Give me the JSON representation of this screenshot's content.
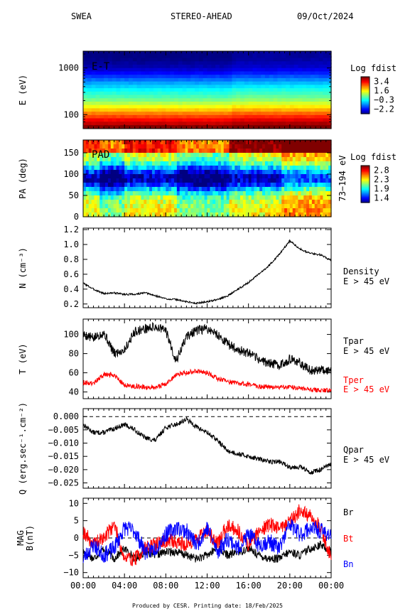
{
  "header": {
    "instrument": "SWEA",
    "spacecraft": "STEREO-AHEAD",
    "date": "09/Oct/2024"
  },
  "footer": "Produced by CESR.   Printing date: 18/Feb/2025",
  "colors": {
    "black": "#000000",
    "red": "#ff0000",
    "blue": "#0000ff"
  },
  "chart_data": [
    {
      "type": "heatmap",
      "id": "et",
      "panel_label": "E-T",
      "ylabel": "E (eV)",
      "yscale": "log",
      "yticks": [
        {
          "value": 1000,
          "label": "1000"
        },
        {
          "value": 100,
          "label": "100"
        }
      ],
      "ylim": [
        50,
        2300
      ],
      "colorbar": {
        "title": "Log fdist",
        "ticks": [
          "3.4",
          "1.6",
          "−0.3",
          "−2.2"
        ],
        "range": [
          -2.2,
          3.4
        ]
      },
      "energy_bands": [
        {
          "energy": 56,
          "value": 3.35
        },
        {
          "energy": 66,
          "value": 3.0
        },
        {
          "energy": 78,
          "value": 2.7
        },
        {
          "energy": 92,
          "value": 2.35
        },
        {
          "energy": 108,
          "value": 2.0
        },
        {
          "energy": 128,
          "value": 1.6
        },
        {
          "energy": 151,
          "value": 1.25
        },
        {
          "energy": 178,
          "value": 0.9
        },
        {
          "energy": 210,
          "value": 0.55
        },
        {
          "energy": 248,
          "value": 0.3
        },
        {
          "energy": 293,
          "value": 0.1
        },
        {
          "energy": 346,
          "value": -0.1
        },
        {
          "energy": 408,
          "value": -0.35
        },
        {
          "energy": 482,
          "value": -0.6
        },
        {
          "energy": 569,
          "value": -0.9
        },
        {
          "energy": 672,
          "value": -1.2
        },
        {
          "energy": 793,
          "value": -1.5
        },
        {
          "energy": 936,
          "value": -1.75
        },
        {
          "energy": 1105,
          "value": -1.95
        },
        {
          "energy": 1305,
          "value": -2.05
        },
        {
          "energy": 1541,
          "value": -2.15
        },
        {
          "energy": 1819,
          "value": -2.2
        }
      ]
    },
    {
      "type": "heatmap",
      "id": "pad",
      "panel_label": "PAD",
      "ylabel": "PA (deg)",
      "ylim": [
        0,
        180
      ],
      "yticks": [
        0,
        50,
        100,
        150
      ],
      "right_label": "73−194 eV",
      "colorbar": {
        "title": "Log fdist",
        "ticks": [
          "2.8",
          "2.3",
          "1.9",
          "1.4"
        ],
        "range": [
          1.4,
          2.8
        ]
      }
    },
    {
      "type": "line",
      "id": "density",
      "ylabel": "N (cm⁻³)",
      "ylim": [
        0.15,
        1.22
      ],
      "yticks": [
        "0.2",
        "0.4",
        "0.6",
        "0.8",
        "1.0",
        "1.2"
      ],
      "series": [
        {
          "name": "Density",
          "sub": "E > 45 eV",
          "color": "#000000",
          "points": [
            [
              0,
              0.48
            ],
            [
              1,
              0.4
            ],
            [
              2,
              0.34
            ],
            [
              3,
              0.35
            ],
            [
              4,
              0.33
            ],
            [
              5,
              0.33
            ],
            [
              6,
              0.35
            ],
            [
              7,
              0.31
            ],
            [
              8,
              0.27
            ],
            [
              9,
              0.26
            ],
            [
              10,
              0.23
            ],
            [
              11,
              0.21
            ],
            [
              12,
              0.23
            ],
            [
              13,
              0.26
            ],
            [
              14,
              0.31
            ],
            [
              15,
              0.4
            ],
            [
              16,
              0.49
            ],
            [
              17,
              0.6
            ],
            [
              18,
              0.72
            ],
            [
              19,
              0.87
            ],
            [
              20,
              1.05
            ],
            [
              21,
              0.94
            ],
            [
              22,
              0.88
            ],
            [
              23,
              0.86
            ],
            [
              24,
              0.79
            ]
          ]
        }
      ]
    },
    {
      "type": "line",
      "id": "temperature",
      "ylabel": "T (eV)",
      "ylim": [
        33,
        116
      ],
      "yticks": [
        "40",
        "60",
        "80",
        "100"
      ],
      "series": [
        {
          "name": "Tpar",
          "sub": "E > 45 eV",
          "color": "#000000",
          "points": [
            [
              0,
              100
            ],
            [
              1,
              96
            ],
            [
              2,
              102
            ],
            [
              3,
              80
            ],
            [
              4,
              84
            ],
            [
              5,
              103
            ],
            [
              6,
              106
            ],
            [
              7,
              108
            ],
            [
              8,
              104
            ],
            [
              9,
              72
            ],
            [
              10,
              98
            ],
            [
              11,
              104
            ],
            [
              12,
              106
            ],
            [
              13,
              100
            ],
            [
              14,
              90
            ],
            [
              15,
              84
            ],
            [
              16,
              80
            ],
            [
              17,
              74
            ],
            [
              18,
              70
            ],
            [
              19,
              68
            ],
            [
              20,
              74
            ],
            [
              21,
              70
            ],
            [
              22,
              62
            ],
            [
              23,
              64
            ],
            [
              24,
              62
            ]
          ]
        },
        {
          "name": "Tper",
          "sub": "E > 45 eV",
          "color": "#ff0000",
          "points": [
            [
              0,
              50
            ],
            [
              1,
              49
            ],
            [
              2,
              58
            ],
            [
              3,
              58
            ],
            [
              4,
              47
            ],
            [
              5,
              46
            ],
            [
              6,
              45
            ],
            [
              7,
              45
            ],
            [
              8,
              48
            ],
            [
              9,
              58
            ],
            [
              10,
              60
            ],
            [
              11,
              62
            ],
            [
              12,
              60
            ],
            [
              13,
              54
            ],
            [
              14,
              51
            ],
            [
              15,
              49
            ],
            [
              16,
              48
            ],
            [
              17,
              46
            ],
            [
              18,
              45
            ],
            [
              19,
              45
            ],
            [
              20,
              45
            ],
            [
              21,
              44
            ],
            [
              22,
              42
            ],
            [
              23,
              42
            ],
            [
              24,
              41
            ]
          ]
        }
      ]
    },
    {
      "type": "line",
      "id": "heatflux",
      "ylabel": "Q (erg.sec⁻¹.cm⁻²)",
      "ylim": [
        -0.027,
        0.003
      ],
      "yticks": [
        "0.000",
        "−0.005",
        "−0.010",
        "−0.015",
        "−0.020",
        "−0.025"
      ],
      "series": [
        {
          "name": "Qpar",
          "sub": "E > 45 eV",
          "color": "#000000",
          "points": [
            [
              0,
              -0.003
            ],
            [
              1,
              -0.006
            ],
            [
              2,
              -0.006
            ],
            [
              3,
              -0.0045
            ],
            [
              4,
              -0.003
            ],
            [
              5,
              -0.005
            ],
            [
              6,
              -0.008
            ],
            [
              7,
              -0.009
            ],
            [
              8,
              -0.004
            ],
            [
              9,
              -0.003
            ],
            [
              10,
              -0.001
            ],
            [
              11,
              -0.004
            ],
            [
              12,
              -0.006
            ],
            [
              13,
              -0.009
            ],
            [
              14,
              -0.013
            ],
            [
              15,
              -0.014
            ],
            [
              16,
              -0.015
            ],
            [
              17,
              -0.016
            ],
            [
              18,
              -0.017
            ],
            [
              19,
              -0.017
            ],
            [
              20,
              -0.019
            ],
            [
              21,
              -0.019
            ],
            [
              22,
              -0.021
            ],
            [
              23,
              -0.02
            ],
            [
              24,
              -0.018
            ]
          ]
        }
      ]
    },
    {
      "type": "line",
      "id": "mag",
      "ylabel": "MAG B(nT)",
      "ylim": [
        -11.5,
        11.5
      ],
      "yticks": [
        "10",
        "5",
        "0",
        "−5",
        "−10"
      ],
      "xticks": [
        "00:00",
        "04:00",
        "08:00",
        "12:00",
        "16:00",
        "20:00",
        "00:00"
      ],
      "series": [
        {
          "name": "Br",
          "color": "#000000",
          "points": [
            [
              0,
              -4
            ],
            [
              1,
              -6
            ],
            [
              2,
              -3
            ],
            [
              3,
              -6
            ],
            [
              4,
              -3
            ],
            [
              5,
              -6
            ],
            [
              6,
              -4
            ],
            [
              7,
              -5
            ],
            [
              8,
              -4
            ],
            [
              9,
              -4
            ],
            [
              10,
              -5
            ],
            [
              11,
              -6
            ],
            [
              12,
              -5
            ],
            [
              13,
              -3
            ],
            [
              14,
              -5
            ],
            [
              15,
              -4
            ],
            [
              16,
              -3
            ],
            [
              17,
              -5
            ],
            [
              18,
              -6
            ],
            [
              19,
              -6
            ],
            [
              20,
              -4
            ],
            [
              21,
              -5
            ],
            [
              22,
              -3
            ],
            [
              23,
              -2
            ],
            [
              24,
              -4
            ]
          ]
        },
        {
          "name": "Bt",
          "color": "#ff0000",
          "points": [
            [
              0,
              2
            ],
            [
              1,
              -2
            ],
            [
              2,
              0
            ],
            [
              3,
              4
            ],
            [
              4,
              -6
            ],
            [
              5,
              -6
            ],
            [
              6,
              -3
            ],
            [
              7,
              -2
            ],
            [
              8,
              -1
            ],
            [
              9,
              -1
            ],
            [
              10,
              -2
            ],
            [
              11,
              0
            ],
            [
              12,
              2
            ],
            [
              13,
              -2
            ],
            [
              14,
              4
            ],
            [
              15,
              2
            ],
            [
              16,
              -2
            ],
            [
              17,
              2
            ],
            [
              18,
              4
            ],
            [
              19,
              3
            ],
            [
              20,
              5
            ],
            [
              21,
              8
            ],
            [
              22,
              6
            ],
            [
              23,
              3
            ],
            [
              24,
              -6
            ]
          ]
        },
        {
          "name": "Bn",
          "color": "#0000ff",
          "points": [
            [
              0,
              -6
            ],
            [
              1,
              -2
            ],
            [
              2,
              -5
            ],
            [
              3,
              -3
            ],
            [
              4,
              3
            ],
            [
              5,
              2
            ],
            [
              6,
              -4
            ],
            [
              7,
              -3
            ],
            [
              8,
              1
            ],
            [
              9,
              3
            ],
            [
              10,
              2
            ],
            [
              11,
              -2
            ],
            [
              12,
              3
            ],
            [
              13,
              -4
            ],
            [
              14,
              0
            ],
            [
              15,
              -3
            ],
            [
              16,
              1
            ],
            [
              17,
              -2
            ],
            [
              18,
              -1
            ],
            [
              19,
              -3
            ],
            [
              20,
              4
            ],
            [
              21,
              1
            ],
            [
              22,
              3
            ],
            [
              23,
              2
            ],
            [
              24,
              1
            ]
          ]
        }
      ]
    }
  ]
}
